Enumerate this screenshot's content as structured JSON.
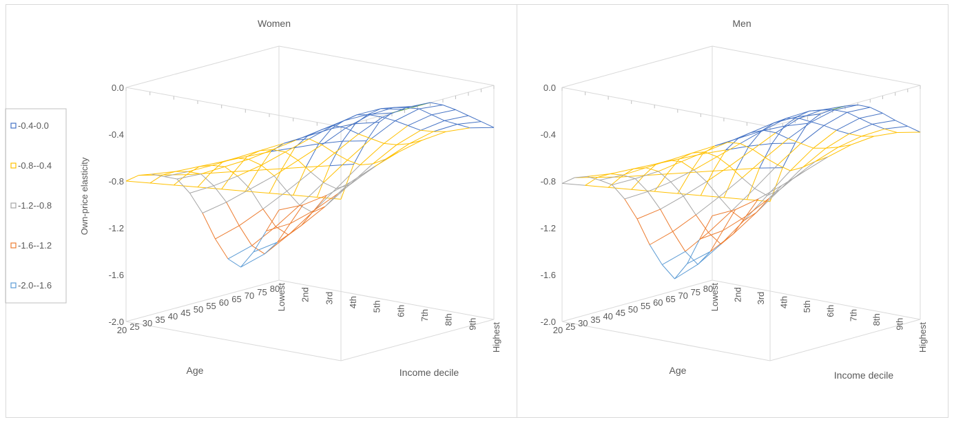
{
  "legend": {
    "items": [
      {
        "label": "-0.4-0.0",
        "color": "#4472c4"
      },
      {
        "label": "-0.8--0.4",
        "color": "#ffc000"
      },
      {
        "label": "-1.2--0.8",
        "color": "#a5a5a5"
      },
      {
        "label": "-1.6--1.2",
        "color": "#ed7d31"
      },
      {
        "label": "-2.0--1.6",
        "color": "#5b9bd5"
      }
    ],
    "above_max_color": "#70ad47"
  },
  "chart_data": [
    {
      "type": "surface",
      "title": "Women",
      "zlabel": "Own-price elasticity",
      "xlabel": "Age",
      "ylabel": "Income decile",
      "zlim": [
        -2.0,
        0.0
      ],
      "z_ticks": [
        "0.0",
        "-0.4",
        "-0.8",
        "-1.2",
        "-1.6",
        "-2.0"
      ],
      "age_ticks": [
        "20",
        "25",
        "30",
        "35",
        "40",
        "45",
        "50",
        "55",
        "60",
        "65",
        "70",
        "75",
        "80"
      ],
      "income_ticks": [
        "Lowest",
        "2nd",
        "3rd",
        "4th",
        "5th",
        "6th",
        "7th",
        "8th",
        "9th",
        "Highest"
      ],
      "age_values": [
        20,
        25,
        30,
        35,
        40,
        45,
        50,
        55,
        60,
        65,
        70,
        75,
        80
      ],
      "income_values": [
        1,
        2,
        3,
        4,
        5,
        6,
        7,
        8,
        9,
        10
      ],
      "z_values": [
        [
          -0.8,
          -0.78,
          -0.76,
          -0.74,
          -0.72,
          -0.7,
          -0.68,
          -0.66,
          -0.64,
          -0.62
        ],
        [
          -0.78,
          -0.74,
          -0.7,
          -0.65,
          -0.6,
          -0.55,
          -0.5,
          -0.45,
          -0.4,
          -0.35
        ],
        [
          -0.8,
          -0.74,
          -0.66,
          -0.58,
          -0.5,
          -0.42,
          -0.35,
          -0.28,
          -0.22,
          -0.18
        ],
        [
          -0.85,
          -0.77,
          -0.68,
          -0.58,
          -0.48,
          -0.38,
          -0.28,
          -0.18,
          -0.1,
          -0.05
        ],
        [
          -0.9,
          -0.82,
          -0.72,
          -0.62,
          -0.5,
          -0.38,
          -0.26,
          -0.14,
          -0.05,
          0.0
        ],
        [
          -1.05,
          -0.95,
          -0.83,
          -0.7,
          -0.55,
          -0.4,
          -0.25,
          -0.12,
          -0.03,
          0.0
        ],
        [
          -1.25,
          -1.12,
          -0.97,
          -0.82,
          -0.65,
          -0.48,
          -0.3,
          -0.15,
          -0.05,
          0.0
        ],
        [
          -1.5,
          -1.35,
          -1.17,
          -0.98,
          -0.78,
          -0.58,
          -0.38,
          -0.2,
          -0.08,
          0.0
        ],
        [
          -1.7,
          -1.55,
          -1.35,
          -1.13,
          -0.9,
          -0.67,
          -0.45,
          -0.26,
          -0.12,
          -0.05
        ],
        [
          -1.8,
          -1.65,
          -1.45,
          -1.22,
          -0.98,
          -0.74,
          -0.52,
          -0.33,
          -0.2,
          -0.12
        ],
        [
          -1.7,
          -1.58,
          -1.4,
          -1.2,
          -0.98,
          -0.76,
          -0.56,
          -0.4,
          -0.28,
          -0.2
        ],
        [
          -1.55,
          -1.45,
          -1.3,
          -1.12,
          -0.93,
          -0.75,
          -0.58,
          -0.44,
          -0.34,
          -0.28
        ],
        [
          -1.4,
          -1.32,
          -1.2,
          -1.05,
          -0.88,
          -0.72,
          -0.58,
          -0.47,
          -0.4,
          -0.36
        ]
      ]
    },
    {
      "type": "surface",
      "title": "Men",
      "zlabel": "",
      "xlabel": "Age",
      "ylabel": "Income decile",
      "zlim": [
        -2.0,
        0.0
      ],
      "z_ticks": [
        "0.0",
        "-0.4",
        "-0.8",
        "-1.2",
        "-1.6",
        "-2.0"
      ],
      "age_ticks": [
        "20",
        "25",
        "30",
        "35",
        "40",
        "45",
        "50",
        "55",
        "60",
        "65",
        "70",
        "75",
        "80"
      ],
      "income_ticks": [
        "Lowest",
        "2nd",
        "3rd",
        "4th",
        "5th",
        "6th",
        "7th",
        "8th",
        "9th",
        "Highest"
      ],
      "age_values": [
        20,
        25,
        30,
        35,
        40,
        45,
        50,
        55,
        60,
        65,
        70,
        75,
        80
      ],
      "income_values": [
        1,
        2,
        3,
        4,
        5,
        6,
        7,
        8,
        9,
        10
      ],
      "z_values": [
        [
          -0.82,
          -0.8,
          -0.78,
          -0.76,
          -0.74,
          -0.72,
          -0.7,
          -0.68,
          -0.66,
          -0.64
        ],
        [
          -0.8,
          -0.76,
          -0.72,
          -0.67,
          -0.62,
          -0.57,
          -0.52,
          -0.47,
          -0.42,
          -0.38
        ],
        [
          -0.82,
          -0.76,
          -0.68,
          -0.6,
          -0.52,
          -0.44,
          -0.37,
          -0.3,
          -0.24,
          -0.2
        ],
        [
          -0.88,
          -0.8,
          -0.7,
          -0.6,
          -0.5,
          -0.4,
          -0.3,
          -0.2,
          -0.12,
          -0.06
        ],
        [
          -0.95,
          -0.86,
          -0.76,
          -0.64,
          -0.52,
          -0.4,
          -0.28,
          -0.16,
          -0.07,
          -0.01
        ],
        [
          -1.1,
          -1.0,
          -0.88,
          -0.74,
          -0.59,
          -0.44,
          -0.29,
          -0.15,
          -0.05,
          0.0
        ],
        [
          -1.3,
          -1.18,
          -1.03,
          -0.87,
          -0.7,
          -0.52,
          -0.34,
          -0.18,
          -0.07,
          0.0
        ],
        [
          -1.55,
          -1.4,
          -1.22,
          -1.03,
          -0.83,
          -0.62,
          -0.42,
          -0.24,
          -0.1,
          -0.02
        ],
        [
          -1.75,
          -1.6,
          -1.4,
          -1.18,
          -0.95,
          -0.71,
          -0.49,
          -0.3,
          -0.15,
          -0.07
        ],
        [
          -1.9,
          -1.74,
          -1.53,
          -1.29,
          -1.04,
          -0.79,
          -0.56,
          -0.37,
          -0.23,
          -0.15
        ],
        [
          -1.8,
          -1.66,
          -1.47,
          -1.25,
          -1.02,
          -0.79,
          -0.59,
          -0.43,
          -0.31,
          -0.24
        ],
        [
          -1.62,
          -1.51,
          -1.35,
          -1.16,
          -0.96,
          -0.77,
          -0.61,
          -0.48,
          -0.38,
          -0.32
        ],
        [
          -1.45,
          -1.36,
          -1.23,
          -1.08,
          -0.92,
          -0.76,
          -0.62,
          -0.51,
          -0.44,
          -0.4
        ]
      ]
    }
  ]
}
